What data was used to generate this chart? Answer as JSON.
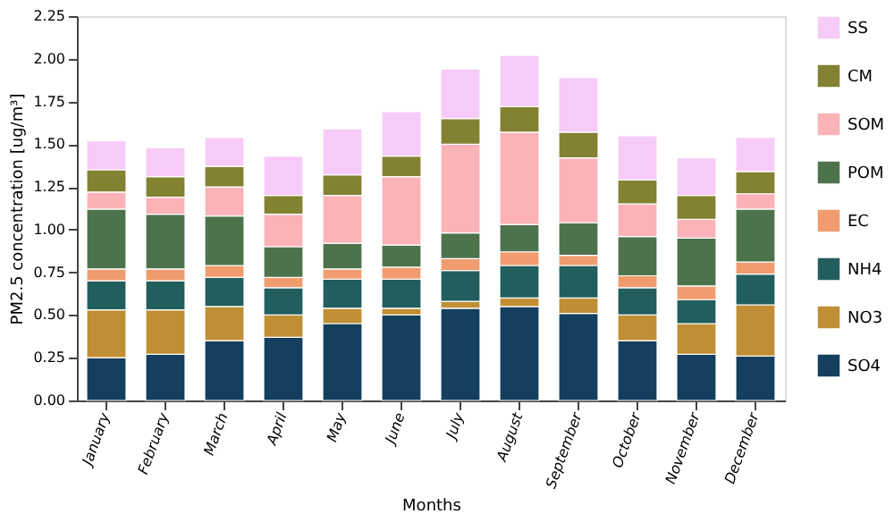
{
  "chart_data": {
    "type": "bar",
    "stacked": true,
    "xlabel": "Months",
    "ylabel": "PM2.5 concentration [ug/m³]",
    "categories": [
      "January",
      "February",
      "March",
      "April",
      "May",
      "June",
      "July",
      "August",
      "September",
      "October",
      "November",
      "December"
    ],
    "ylim": [
      0,
      2.25
    ],
    "yticks": [
      {
        "value": 0,
        "label": "0.00"
      },
      {
        "value": 0.25,
        "label": "0.25"
      },
      {
        "value": 0.5,
        "label": "0.50"
      },
      {
        "value": 0.75,
        "label": "0.75"
      },
      {
        "value": 1.0,
        "label": "1.00"
      },
      {
        "value": 1.25,
        "label": "1.25"
      },
      {
        "value": 1.5,
        "label": "1.50"
      },
      {
        "value": 1.75,
        "label": "1.75"
      },
      {
        "value": 2.0,
        "label": "2.00"
      },
      {
        "value": 2.25,
        "label": "2.25"
      }
    ],
    "grid": false,
    "legend": "right",
    "series": [
      {
        "name": "SO4",
        "color": "#143f5e",
        "values": [
          0.25,
          0.27,
          0.35,
          0.37,
          0.45,
          0.5,
          0.54,
          0.55,
          0.51,
          0.35,
          0.27,
          0.26
        ]
      },
      {
        "name": "NO3",
        "color": "#c08f35",
        "values": [
          0.28,
          0.26,
          0.2,
          0.13,
          0.09,
          0.04,
          0.04,
          0.05,
          0.09,
          0.15,
          0.18,
          0.3
        ]
      },
      {
        "name": "NH4",
        "color": "#225e5e",
        "values": [
          0.17,
          0.17,
          0.17,
          0.16,
          0.17,
          0.17,
          0.18,
          0.19,
          0.19,
          0.16,
          0.14,
          0.18
        ]
      },
      {
        "name": "EC",
        "color": "#f09c6e",
        "values": [
          0.07,
          0.07,
          0.07,
          0.06,
          0.06,
          0.07,
          0.07,
          0.08,
          0.06,
          0.07,
          0.08,
          0.07
        ]
      },
      {
        "name": "POM",
        "color": "#4d734c",
        "values": [
          0.35,
          0.32,
          0.29,
          0.18,
          0.15,
          0.13,
          0.15,
          0.16,
          0.19,
          0.23,
          0.28,
          0.31
        ]
      },
      {
        "name": "SOM",
        "color": "#fbb3b8",
        "values": [
          0.1,
          0.1,
          0.17,
          0.19,
          0.28,
          0.4,
          0.52,
          0.54,
          0.38,
          0.19,
          0.11,
          0.09
        ]
      },
      {
        "name": "CM",
        "color": "#838132",
        "values": [
          0.13,
          0.12,
          0.12,
          0.11,
          0.12,
          0.12,
          0.15,
          0.15,
          0.15,
          0.14,
          0.14,
          0.13
        ]
      },
      {
        "name": "SS",
        "color": "#f7cbf7",
        "values": [
          0.17,
          0.17,
          0.17,
          0.23,
          0.27,
          0.26,
          0.29,
          0.3,
          0.32,
          0.26,
          0.22,
          0.2
        ]
      }
    ]
  }
}
